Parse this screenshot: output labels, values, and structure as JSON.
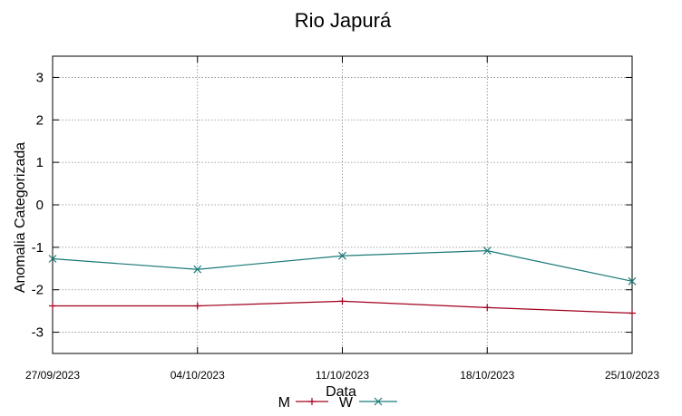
{
  "chart_data": {
    "type": "line",
    "title": "Rio Japurá",
    "xlabel": "Data",
    "ylabel": "Anomalia Categorizada",
    "categories": [
      "27/09/2023",
      "04/10/2023",
      "11/10/2023",
      "18/10/2023",
      "25/10/2023"
    ],
    "ylim": [
      -3.5,
      3.5
    ],
    "yticks": [
      3,
      2,
      1,
      0,
      -1,
      -2,
      -3
    ],
    "ytick_labels": [
      "3",
      "2",
      "1",
      "0",
      "-1",
      "-2",
      "-3"
    ],
    "grid": true,
    "legend_position": "bottom-center",
    "series": [
      {
        "name": "M",
        "color": "#a0001e",
        "marker": "plus",
        "values": [
          -2.38,
          -2.38,
          -2.27,
          -2.42,
          -2.55
        ]
      },
      {
        "name": "W",
        "color": "#1a7a78",
        "marker": "cross",
        "values": [
          -1.27,
          -1.52,
          -1.2,
          -1.08,
          -1.8
        ]
      }
    ]
  }
}
